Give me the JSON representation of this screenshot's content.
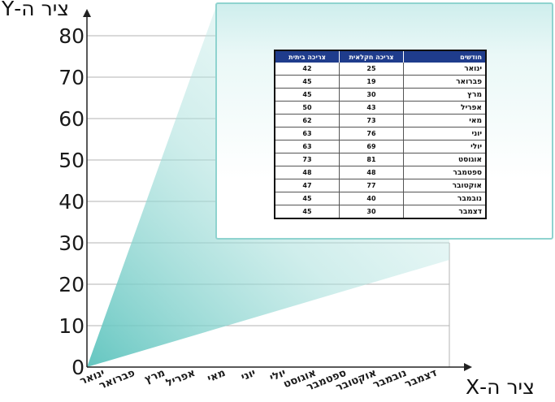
{
  "chart_data": {
    "type": "table",
    "xlabel": "ציר ה-X",
    "ylabel": "ציר ה-Y",
    "ylim": [
      0,
      80
    ],
    "yticks": [
      0,
      10,
      20,
      30,
      40,
      50,
      60,
      70,
      80
    ],
    "grid": true,
    "categories": [
      "ינואר",
      "פברואר",
      "מרץ",
      "אפריל",
      "מאי",
      "יוני",
      "יולי",
      "אוגוסט",
      "ספטמבר",
      "אוקטובר",
      "נובמבר",
      "דצמבר"
    ],
    "table": {
      "headers": [
        "חודשים",
        "צריכה חקלאית",
        "צריכה ביתית"
      ],
      "rows": [
        [
          "ינואר",
          25,
          42
        ],
        [
          "פברואר",
          19,
          45
        ],
        [
          "מרץ",
          30,
          45
        ],
        [
          "אפריל",
          43,
          50
        ],
        [
          "מאי",
          73,
          62
        ],
        [
          "יוני",
          76,
          63
        ],
        [
          "יולי",
          69,
          63
        ],
        [
          "אוגוסט",
          81,
          73
        ],
        [
          "ספטמבר",
          48,
          48
        ],
        [
          "אוקטובר",
          77,
          47
        ],
        [
          "נובמבר",
          40,
          45
        ],
        [
          "דצמבר",
          30,
          45
        ]
      ]
    },
    "colors": {
      "header_bg": "#1f3c8c",
      "callout_teal": "#5cc3bd",
      "panel_border": "#8fd3cf"
    }
  }
}
